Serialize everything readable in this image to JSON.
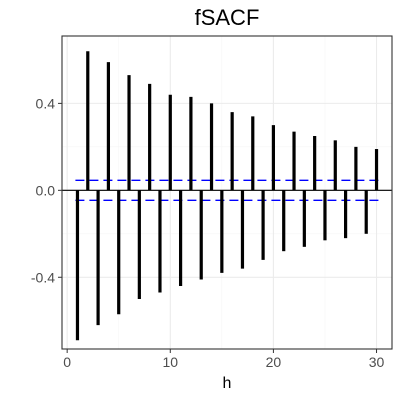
{
  "chart_data": {
    "type": "bar",
    "title": "fSACF",
    "xlabel": "h",
    "ylabel": "",
    "x": [
      1,
      2,
      3,
      4,
      5,
      6,
      7,
      8,
      9,
      10,
      11,
      12,
      13,
      14,
      15,
      16,
      17,
      18,
      19,
      20,
      21,
      22,
      23,
      24,
      25,
      26,
      27,
      28,
      29,
      30
    ],
    "values": [
      -0.69,
      0.64,
      -0.62,
      0.59,
      -0.57,
      0.53,
      -0.5,
      0.49,
      -0.47,
      0.44,
      -0.44,
      0.43,
      -0.41,
      0.4,
      -0.38,
      0.36,
      -0.36,
      0.34,
      -0.32,
      0.3,
      -0.28,
      0.27,
      -0.26,
      0.25,
      -0.23,
      0.23,
      -0.22,
      0.2,
      -0.2,
      0.19
    ],
    "xlim": [
      -0.5,
      31.5
    ],
    "ylim": [
      -0.73,
      0.71
    ],
    "x_ticks": [
      0,
      10,
      20,
      30
    ],
    "x_tick_labels": [
      "0",
      "10",
      "20",
      "30"
    ],
    "y_ticks": [
      -0.4,
      0.0,
      0.4
    ],
    "y_tick_labels": [
      "-0.4",
      "0.0",
      "0.4"
    ],
    "confidence_bounds": [
      0.046,
      -0.046
    ],
    "grid": true,
    "colors": {
      "bars": "#000000",
      "bounds": "#0000ff",
      "grid_major": "#ebebeb",
      "grid_minor": "#f5f5f5",
      "panel_border": "#333333",
      "zero_line": "#000000"
    }
  }
}
